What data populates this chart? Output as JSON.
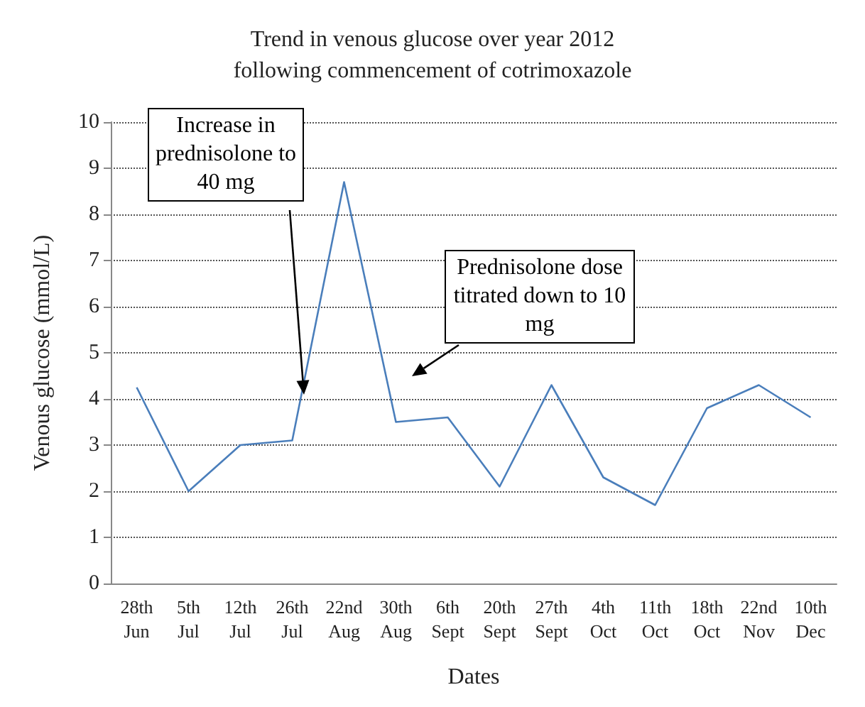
{
  "chart_data": {
    "type": "line",
    "title": "Trend in venous glucose over year 2012\nfollowing commencement of cotrimoxazole",
    "xlabel": "Dates",
    "ylabel": "Venous glucose (mmol/L)",
    "categories": [
      "28th Jun",
      "5th Jul",
      "12th Jul",
      "26th Jul",
      "22nd Aug",
      "30th Aug",
      "6th Sept",
      "20th Sept",
      "27th Sept",
      "4th Oct",
      "11th Oct",
      "18th Oct",
      "22nd Nov",
      "10th Dec"
    ],
    "values": [
      4.25,
      2.0,
      3.0,
      3.1,
      8.7,
      3.5,
      3.6,
      2.1,
      4.3,
      2.3,
      1.7,
      3.8,
      4.3,
      3.6
    ],
    "color": "#4a7ebb",
    "ylim": [
      0,
      10
    ],
    "yticks": [
      0,
      1,
      2,
      3,
      4,
      5,
      6,
      7,
      8,
      9,
      10
    ],
    "grid": "y",
    "line_style": "solid",
    "marker": "none",
    "annotations": [
      "Increase in prednisolone to 40 mg",
      "Prednisolone dose titrated down to 10 mg"
    ]
  }
}
